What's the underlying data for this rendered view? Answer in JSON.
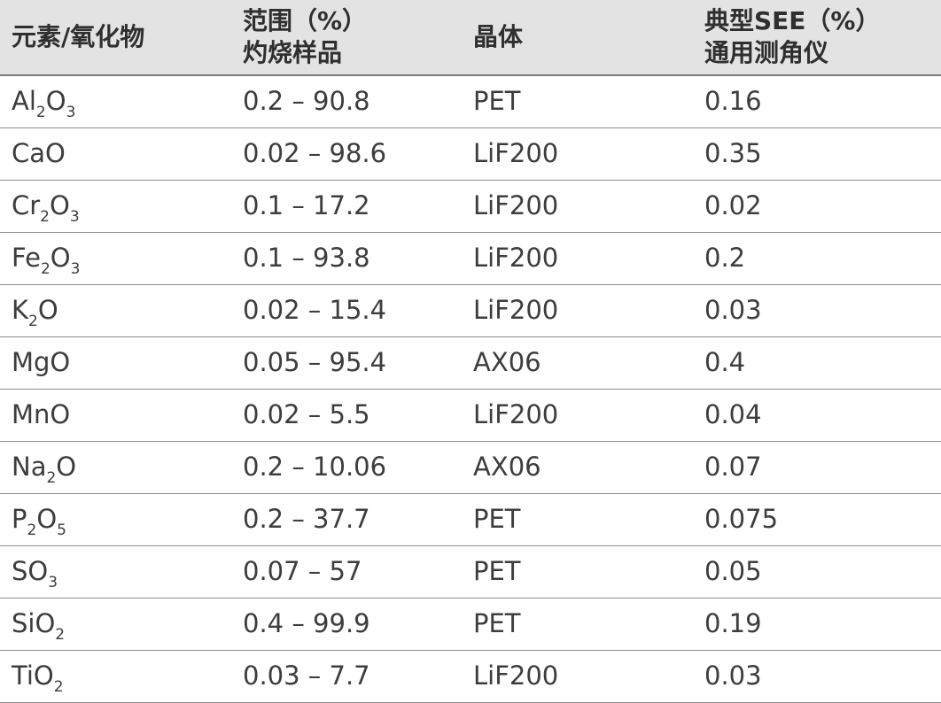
{
  "headers": {
    "col1": "元素/氧化物",
    "col2_line1": "范围（%）",
    "col2_line2": "灼烧样品",
    "col3": "晶体",
    "col4_line1": "典型SEE（%）",
    "col4_line2": "通用测角仪"
  },
  "rows": [
    {
      "formula": [
        {
          "t": "Al"
        },
        {
          "s": "2"
        },
        {
          "t": "O"
        },
        {
          "s": "3"
        }
      ],
      "range": "0.2 – 90.8",
      "crystal": "PET",
      "see": "0.16"
    },
    {
      "formula": [
        {
          "t": "CaO"
        }
      ],
      "range": "0.02 – 98.6",
      "crystal": "LiF200",
      "see": "0.35"
    },
    {
      "formula": [
        {
          "t": "Cr"
        },
        {
          "s": "2"
        },
        {
          "t": "O"
        },
        {
          "s": "3"
        }
      ],
      "range": "0.1 – 17.2",
      "crystal": "LiF200",
      "see": "0.02"
    },
    {
      "formula": [
        {
          "t": "Fe"
        },
        {
          "s": "2"
        },
        {
          "t": "O"
        },
        {
          "s": "3"
        }
      ],
      "range": "0.1 – 93.8",
      "crystal": "LiF200",
      "see": "0.2"
    },
    {
      "formula": [
        {
          "t": "K"
        },
        {
          "s": "2"
        },
        {
          "t": "O"
        }
      ],
      "range": "0.02 – 15.4",
      "crystal": "LiF200",
      "see": "0.03"
    },
    {
      "formula": [
        {
          "t": "MgO"
        }
      ],
      "range": "0.05 – 95.4",
      "crystal": "AX06",
      "see": "0.4"
    },
    {
      "formula": [
        {
          "t": "MnO"
        }
      ],
      "range": "0.02 – 5.5",
      "crystal": "LiF200",
      "see": "0.04"
    },
    {
      "formula": [
        {
          "t": "Na"
        },
        {
          "s": "2"
        },
        {
          "t": "O"
        }
      ],
      "range": "0.2 – 10.06",
      "crystal": "AX06",
      "see": "0.07"
    },
    {
      "formula": [
        {
          "t": "P"
        },
        {
          "s": "2"
        },
        {
          "t": "O"
        },
        {
          "s": "5"
        }
      ],
      "range": "0.2 – 37.7",
      "crystal": "PET",
      "see": "0.075"
    },
    {
      "formula": [
        {
          "t": "SO"
        },
        {
          "s": "3"
        }
      ],
      "range": "0.07 – 57",
      "crystal": "PET",
      "see": "0.05"
    },
    {
      "formula": [
        {
          "t": "SiO"
        },
        {
          "s": "2"
        }
      ],
      "range": "0.4 – 99.9",
      "crystal": "PET",
      "see": "0.19"
    },
    {
      "formula": [
        {
          "t": "TiO"
        },
        {
          "s": "2"
        }
      ],
      "range": "0.03 – 7.7",
      "crystal": "LiF200",
      "see": "0.03"
    }
  ]
}
